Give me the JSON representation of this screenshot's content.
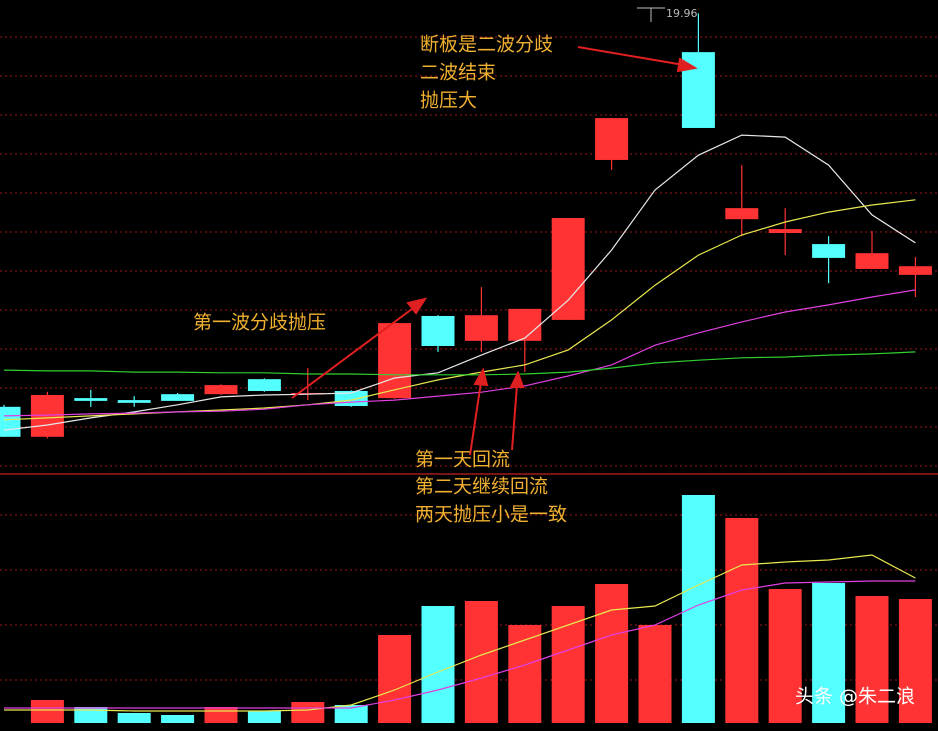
{
  "chart_data": [
    {
      "type": "candlestick",
      "categories": [
        null,
        null,
        null,
        null,
        null,
        null,
        null,
        null,
        null,
        null,
        null,
        null,
        null,
        null,
        null,
        null,
        null,
        null,
        null,
        null,
        null,
        null
      ],
      "open": [
        10.0,
        9.24,
        10.22,
        10.17,
        10.32,
        10.32,
        10.7,
        10.32,
        10.4,
        10.22,
        12.3,
        11.67,
        11.67,
        12.2,
        16.25,
        null,
        18.98,
        14.75,
        14.4,
        14.12,
        13.49,
        13.34
      ],
      "high": [
        10.05,
        10.38,
        10.43,
        10.27,
        10.35,
        10.57,
        10.72,
        10.98,
        10.42,
        12.15,
        12.32,
        13.03,
        12.48,
        14.78,
        17.31,
        null,
        19.96,
        16.12,
        15.03,
        14.32,
        14.45,
        13.79
      ],
      "low": [
        9.24,
        9.2,
        10.0,
        10.0,
        10.15,
        10.3,
        10.38,
        10.17,
        10.0,
        10.2,
        11.39,
        11.39,
        10.88,
        12.2,
        16.0,
        null,
        17.06,
        14.32,
        13.84,
        13.13,
        13.49,
        12.78
      ],
      "close": [
        9.24,
        10.3,
        10.15,
        10.1,
        10.15,
        10.55,
        10.4,
        10.35,
        10.02,
        12.12,
        11.54,
        12.32,
        12.48,
        14.78,
        17.31,
        null,
        17.06,
        15.03,
        14.5,
        13.77,
        13.89,
        13.56
      ],
      "up_color": "#ff3333",
      "down_color": "#54ffff",
      "ylim": [
        8.4,
        20.3
      ],
      "series": [
        {
          "color": "#e8e8e8",
          "values": [
            9.41,
            9.54,
            9.72,
            9.87,
            10.05,
            10.25,
            10.3,
            10.32,
            10.35,
            10.73,
            10.86,
            11.31,
            11.74,
            12.7,
            13.97,
            15.49,
            16.37,
            16.88,
            16.83,
            16.12,
            14.86,
            14.15
          ]
        },
        {
          "color": "#e8e850",
          "values": [
            9.67,
            9.72,
            9.77,
            9.82,
            9.87,
            9.92,
            9.97,
            10.05,
            10.17,
            10.43,
            10.68,
            10.88,
            11.06,
            11.44,
            12.2,
            13.08,
            13.84,
            14.35,
            14.68,
            14.93,
            15.11,
            15.24
          ]
        },
        {
          "color": "#e040e0",
          "values": [
            9.77,
            9.79,
            9.82,
            9.84,
            9.87,
            9.89,
            9.94,
            10.05,
            10.12,
            10.17,
            10.27,
            10.37,
            10.53,
            10.78,
            11.06,
            11.56,
            11.87,
            12.15,
            12.4,
            12.58,
            12.78,
            12.96
          ]
        },
        {
          "color": "#30d030",
          "values": [
            10.93,
            10.91,
            10.91,
            10.88,
            10.88,
            10.86,
            10.86,
            10.83,
            10.83,
            10.81,
            10.81,
            10.81,
            10.83,
            10.88,
            10.98,
            11.11,
            11.18,
            11.24,
            11.26,
            11.31,
            11.34,
            11.39
          ]
        }
      ],
      "annotations": [
        {
          "text": "断板是二波分歧"
        },
        {
          "text": "二波结束"
        },
        {
          "text": "抛压大"
        },
        {
          "text": "第一波分歧抛压"
        },
        {
          "text": "第一天回流"
        },
        {
          "text": "第二天继续回流"
        },
        {
          "text": "两天抛压小是一致"
        }
      ]
    },
    {
      "type": "bar",
      "values": [
        null,
        23,
        16,
        10,
        8,
        16,
        12,
        21,
        18,
        88,
        117,
        122,
        98,
        117,
        139,
        98,
        228,
        205,
        134,
        140,
        127,
        124
      ],
      "colors": [
        "#54ffff",
        "#ff3333",
        "#54ffff",
        "#54ffff",
        "#54ffff",
        "#ff3333",
        "#54ffff",
        "#ff3333",
        "#54ffff",
        "#ff3333",
        "#54ffff",
        "#ff3333",
        "#ff3333",
        "#ff3333",
        "#ff3333",
        "#ff3333",
        "#54ffff",
        "#ff3333",
        "#ff3333",
        "#54ffff",
        "#ff3333",
        "#ff3333"
      ],
      "ylim": [
        0,
        240
      ],
      "series": [
        {
          "color": "#e8e850",
          "values": [
            13,
            13,
            13,
            12,
            12,
            12,
            12,
            13,
            18,
            33,
            51,
            68,
            83,
            98,
            113,
            117,
            138,
            158,
            161,
            163,
            168,
            145
          ]
        },
        {
          "color": "#e040e0",
          "values": [
            15,
            15,
            15,
            15,
            15,
            15,
            15,
            15,
            15,
            23,
            33,
            45,
            58,
            73,
            88,
            98,
            118,
            133,
            140,
            141,
            142,
            142
          ]
        }
      ]
    }
  ],
  "watermark": "头条 @朱二浪"
}
